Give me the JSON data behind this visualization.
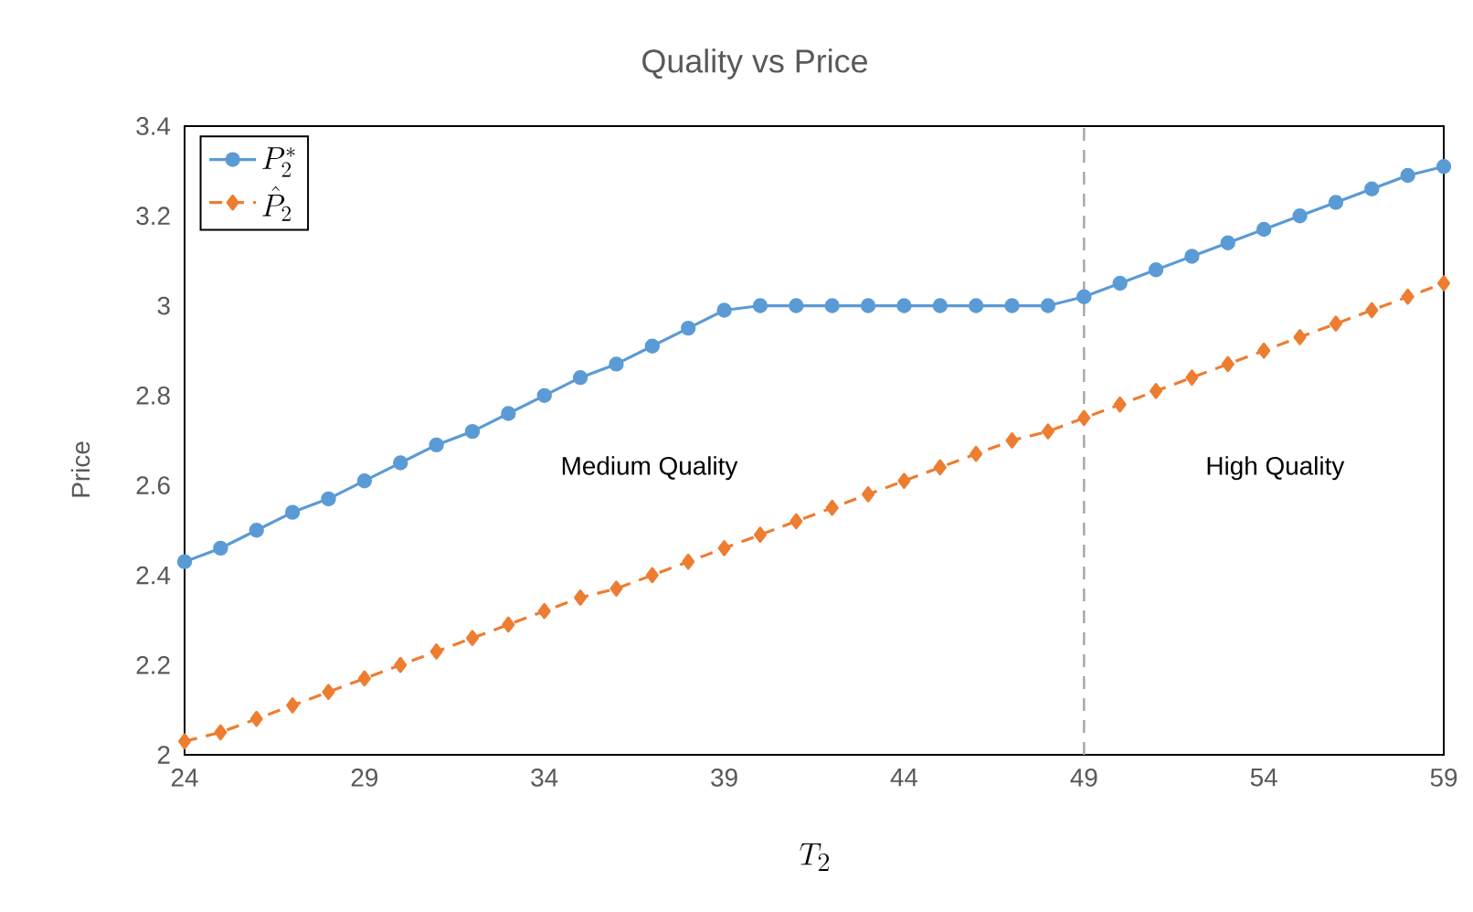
{
  "chart_data": {
    "type": "line",
    "title": "Quality vs Price",
    "xlabel": "T_2",
    "ylabel": "Price",
    "x": [
      24,
      25,
      26,
      27,
      28,
      29,
      30,
      31,
      32,
      33,
      34,
      35,
      36,
      37,
      38,
      39,
      40,
      41,
      42,
      43,
      44,
      45,
      46,
      47,
      48,
      49,
      50,
      51,
      52,
      53,
      54,
      55,
      56,
      57,
      58,
      59
    ],
    "series": [
      {
        "name": "P_2^*",
        "color": "#5b9bd5",
        "marker": "circle",
        "line_style": "solid",
        "values": [
          2.43,
          2.46,
          2.5,
          2.54,
          2.57,
          2.61,
          2.65,
          2.69,
          2.72,
          2.76,
          2.8,
          2.84,
          2.87,
          2.91,
          2.95,
          2.99,
          3.0,
          3.0,
          3.0,
          3.0,
          3.0,
          3.0,
          3.0,
          3.0,
          3.0,
          3.02,
          3.05,
          3.08,
          3.11,
          3.14,
          3.17,
          3.2,
          3.23,
          3.26,
          3.29,
          3.31
        ]
      },
      {
        "name": "\\hat{P}_2",
        "color": "#ed7d31",
        "marker": "diamond",
        "line_style": "dashed",
        "values": [
          2.03,
          2.05,
          2.08,
          2.11,
          2.14,
          2.17,
          2.2,
          2.23,
          2.26,
          2.29,
          2.32,
          2.35,
          2.37,
          2.4,
          2.43,
          2.46,
          2.49,
          2.52,
          2.55,
          2.58,
          2.61,
          2.64,
          2.67,
          2.7,
          2.72,
          2.75,
          2.78,
          2.81,
          2.84,
          2.87,
          2.9,
          2.93,
          2.96,
          2.99,
          3.02,
          3.05
        ]
      }
    ],
    "xlim": [
      24,
      59
    ],
    "xticks": [
      24,
      29,
      34,
      39,
      44,
      49,
      54,
      59
    ],
    "ylim": [
      2,
      3.4
    ],
    "yticks": [
      2,
      2.2,
      2.4,
      2.6,
      2.8,
      3,
      3.2,
      3.4
    ],
    "ref_lines": [
      {
        "axis": "x",
        "value": 49,
        "color": "#a5a5a5",
        "line_style": "dashed"
      }
    ],
    "annotations": [
      "Medium Quality",
      "High Quality"
    ],
    "legend": "top left",
    "grid": false
  }
}
